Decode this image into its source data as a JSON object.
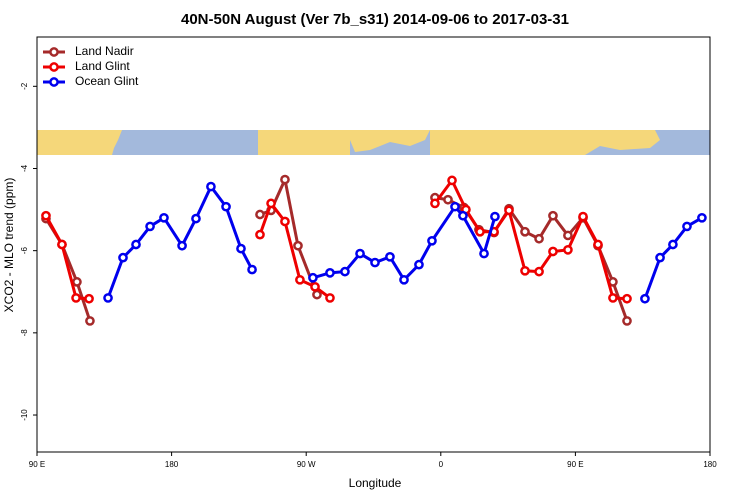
{
  "chart_data": {
    "type": "line",
    "title": "40N-50N August (Ver 7b_s31)   2014-09-06 to 2017-03-31",
    "x_label": "Longitude",
    "y_label": "XCO2 - MLO trend (ppm)",
    "xlim": [
      90,
      540
    ],
    "ylim": [
      -10.9,
      -0.8
    ],
    "xticks": [
      {
        "value": 90,
        "label": "90 E"
      },
      {
        "value": 180,
        "label": "180"
      },
      {
        "value": 270,
        "label": "90 W"
      },
      {
        "value": 360,
        "label": "0"
      },
      {
        "value": 450,
        "label": "90 E"
      },
      {
        "value": 540,
        "label": "180"
      }
    ],
    "yticks": [
      -2,
      -4,
      -6,
      -8,
      -10
    ],
    "legend": "top-left",
    "series": [
      {
        "name": "Land Nadir",
        "color": "#a52a2a",
        "x": [
          96.0,
          106.7,
          116.7,
          125.4,
          null,
          239.1,
          246.5,
          255.8,
          264.5,
          277.2,
          null,
          356.1,
          364.8,
          375.5,
          385.5,
          395.6,
          405.6,
          416.3,
          425.7,
          435.0,
          445.0,
          455.1,
          465.1,
          475.1,
          484.5
        ],
        "values": [
          -5.22,
          -5.85,
          -6.76,
          -7.71,
          null,
          -5.12,
          -5.02,
          -4.27,
          -5.88,
          -7.07,
          null,
          -4.71,
          -4.76,
          -4.95,
          -5.49,
          -5.56,
          -4.98,
          -5.54,
          -5.71,
          -5.15,
          -5.63,
          -5.2,
          -5.88,
          -6.76,
          -7.71
        ]
      },
      {
        "name": "Land Glint",
        "color": "#ee0000",
        "x": [
          96.0,
          106.7,
          116.1,
          124.8,
          null,
          239.1,
          246.5,
          255.8,
          265.8,
          275.9,
          285.9,
          null,
          356.1,
          367.5,
          376.8,
          386.2,
          395.6,
          405.6,
          416.3,
          425.7,
          435.0,
          445.0,
          455.1,
          465.1,
          475.1,
          484.5
        ],
        "values": [
          -5.15,
          -5.85,
          -7.15,
          -7.17,
          null,
          -5.61,
          -4.85,
          -5.29,
          -6.71,
          -6.88,
          -7.15,
          null,
          -4.85,
          -4.29,
          -5.0,
          -5.54,
          -5.54,
          -5.02,
          -6.49,
          -6.51,
          -6.02,
          -5.98,
          -5.17,
          -5.85,
          -7.15,
          -7.17
        ]
      },
      {
        "name": "Ocean Glint",
        "color": "#0000ee",
        "x": [
          137.5,
          147.5,
          156.2,
          165.6,
          174.9,
          187.0,
          196.3,
          206.3,
          216.4,
          226.4,
          233.8,
          null,
          274.5,
          285.9,
          295.9,
          306.0,
          316.0,
          326.0,
          335.4,
          345.4,
          354.1,
          369.5,
          374.8,
          388.9,
          396.2,
          null,
          496.5,
          506.6,
          515.2,
          524.6,
          534.6
        ],
        "values": [
          -7.15,
          -6.17,
          -5.85,
          -5.41,
          -5.2,
          -5.88,
          -5.22,
          -4.44,
          -4.93,
          -5.95,
          -6.46,
          null,
          -6.66,
          -6.54,
          -6.51,
          -6.07,
          -6.29,
          -6.15,
          -6.71,
          -6.34,
          -5.76,
          -4.93,
          -5.15,
          -6.07,
          -5.17,
          null,
          -7.17,
          -6.17,
          -5.85,
          -5.41,
          -5.2
        ]
      }
    ]
  }
}
